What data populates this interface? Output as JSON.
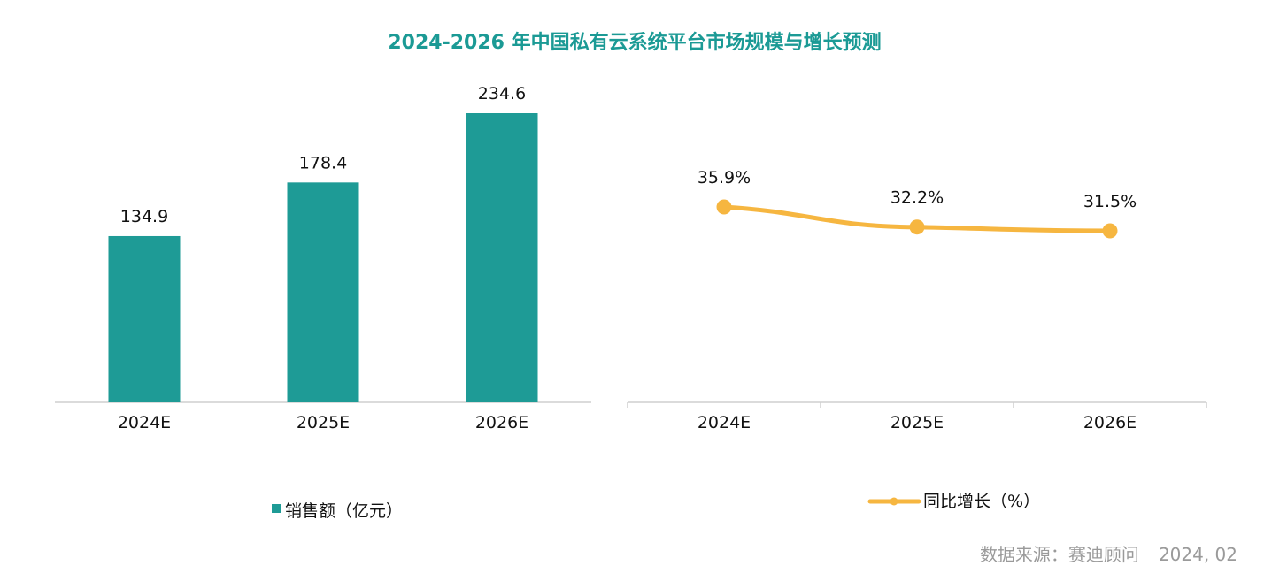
{
  "title": "2024-2026 年中国私有云系统平台市场规模与增长预测",
  "source": {
    "label": "数据来源：赛迪顾问",
    "date": "2024, 02"
  },
  "colors": {
    "title": "#1b9a95",
    "bar": "#1e9b96",
    "line": "#f6b640",
    "axis": "#cfcfcf",
    "source_text": "#9a9a9a"
  },
  "chart_data": [
    {
      "type": "bar",
      "categories": [
        "2024E",
        "2025E",
        "2026E"
      ],
      "series": [
        {
          "name": "销售额（亿元）",
          "values": [
            134.9,
            178.4,
            234.6
          ],
          "labels": [
            "134.9",
            "178.4",
            "234.6"
          ]
        }
      ],
      "ylim": [
        0,
        250
      ],
      "grid": false,
      "legend_position": "bottom"
    },
    {
      "type": "line",
      "categories": [
        "2024E",
        "2025E",
        "2026E"
      ],
      "series": [
        {
          "name": "同比增长（%）",
          "values": [
            35.9,
            32.2,
            31.5
          ],
          "labels": [
            "35.9%",
            "32.2%",
            "31.5%"
          ]
        }
      ],
      "ylim": [
        0,
        50
      ],
      "grid": false,
      "legend_position": "bottom"
    }
  ]
}
